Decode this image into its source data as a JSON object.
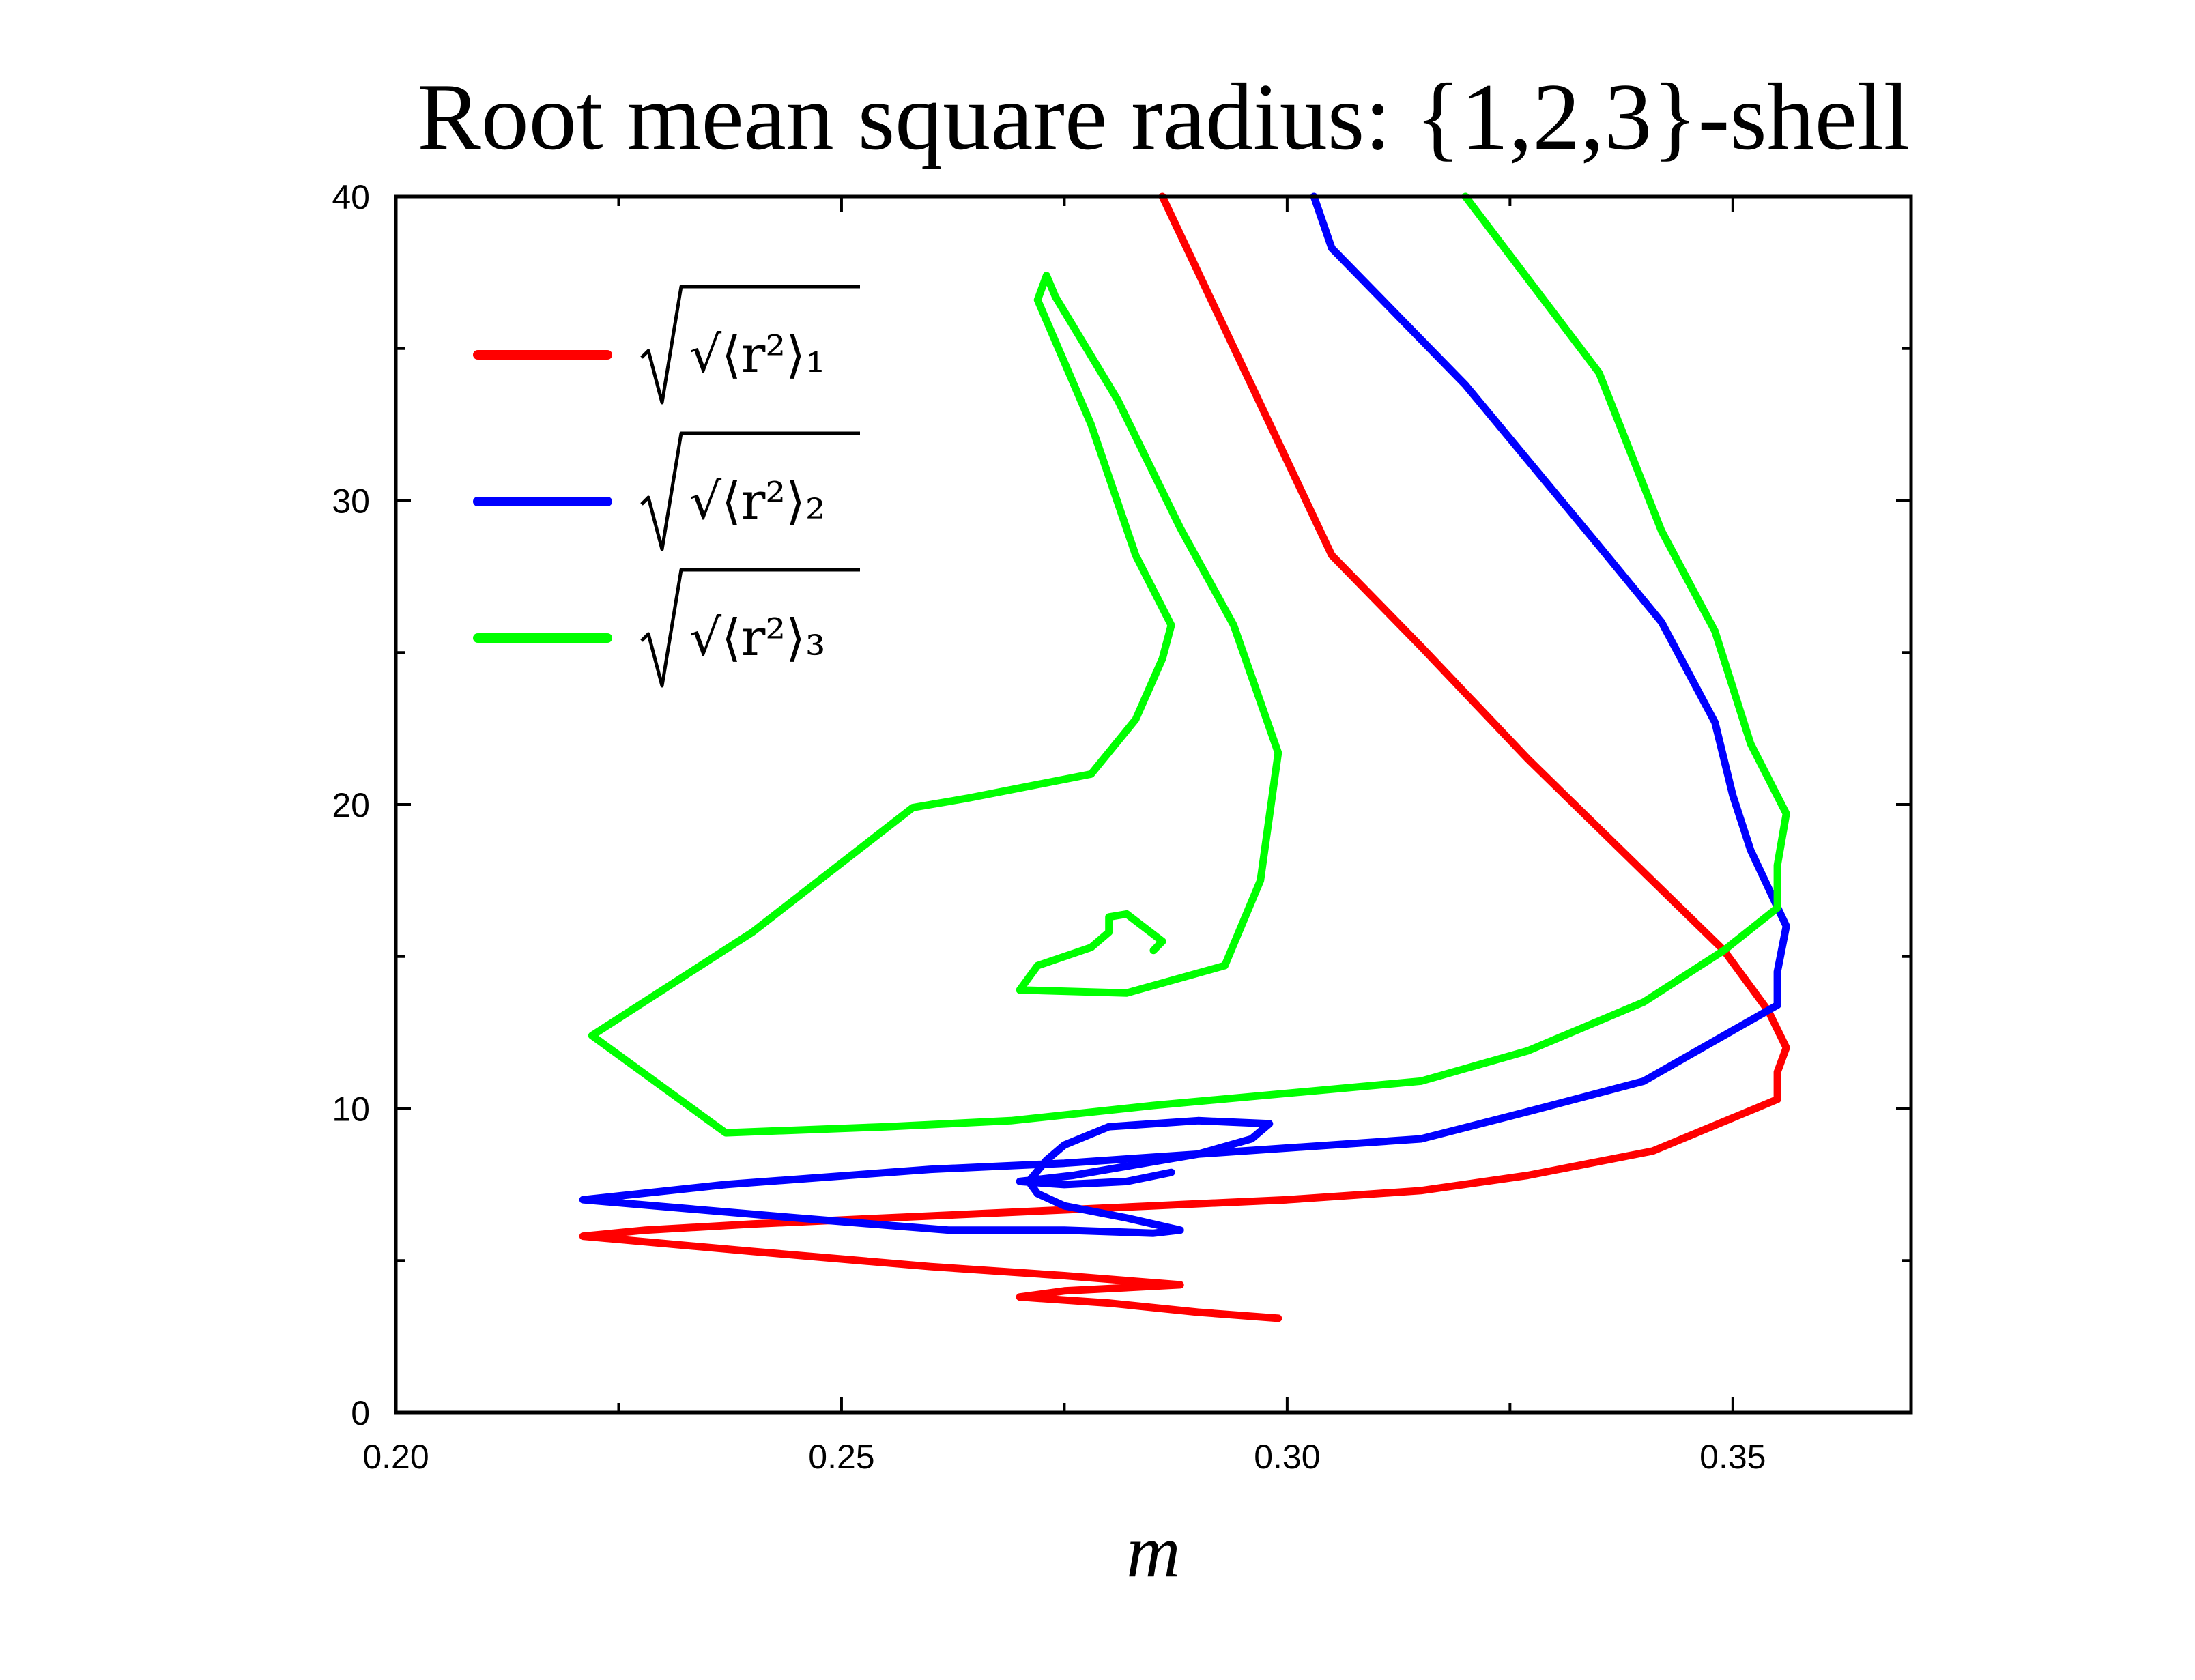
{
  "chart_data": {
    "type": "line",
    "title": "Root mean square radius: {1,2,3}-shell",
    "xlabel": "m",
    "ylabel": "",
    "xlim": [
      0.2,
      0.37
    ],
    "ylim": [
      0,
      40
    ],
    "x_ticks": [
      "0.20",
      "0.25",
      "0.30",
      "0.35"
    ],
    "y_ticks": [
      "0",
      "10",
      "20",
      "30",
      "40"
    ],
    "grid": false,
    "legend_position": "top-left",
    "series": [
      {
        "name": "√⟨r²⟩₁",
        "color": "#ff0000",
        "points": [
          [
            0.286,
            40.0
          ],
          [
            0.305,
            28.2
          ],
          [
            0.315,
            25.2
          ],
          [
            0.327,
            21.5
          ],
          [
            0.342,
            17.2
          ],
          [
            0.349,
            15.2
          ],
          [
            0.354,
            13.2
          ],
          [
            0.356,
            12.0
          ],
          [
            0.355,
            11.2
          ],
          [
            0.355,
            10.3
          ],
          [
            0.341,
            8.6
          ],
          [
            0.327,
            7.8
          ],
          [
            0.315,
            7.3
          ],
          [
            0.3,
            7.0
          ],
          [
            0.285,
            6.8
          ],
          [
            0.27,
            6.6
          ],
          [
            0.255,
            6.4
          ],
          [
            0.24,
            6.2
          ],
          [
            0.228,
            6.0
          ],
          [
            0.221,
            5.8
          ],
          [
            0.24,
            5.3
          ],
          [
            0.26,
            4.8
          ],
          [
            0.275,
            4.5
          ],
          [
            0.288,
            4.2
          ],
          [
            0.275,
            4.0
          ],
          [
            0.27,
            3.8
          ],
          [
            0.28,
            3.6
          ],
          [
            0.29,
            3.3
          ],
          [
            0.299,
            3.1
          ]
        ]
      },
      {
        "name": "√⟨r²⟩₂",
        "color": "#0000ff",
        "points": [
          [
            0.303,
            40.0
          ],
          [
            0.305,
            38.3
          ],
          [
            0.32,
            33.8
          ],
          [
            0.335,
            28.5
          ],
          [
            0.342,
            26.0
          ],
          [
            0.348,
            22.7
          ],
          [
            0.35,
            20.3
          ],
          [
            0.352,
            18.5
          ],
          [
            0.356,
            16.0
          ],
          [
            0.355,
            14.5
          ],
          [
            0.355,
            13.4
          ],
          [
            0.34,
            10.9
          ],
          [
            0.327,
            9.9
          ],
          [
            0.315,
            9.0
          ],
          [
            0.3,
            8.7
          ],
          [
            0.29,
            8.5
          ],
          [
            0.275,
            8.2
          ],
          [
            0.26,
            8.0
          ],
          [
            0.237,
            7.5
          ],
          [
            0.221,
            7.0
          ],
          [
            0.245,
            6.4
          ],
          [
            0.262,
            6.0
          ],
          [
            0.275,
            6.0
          ],
          [
            0.285,
            5.9
          ],
          [
            0.288,
            6.0
          ],
          [
            0.282,
            6.4
          ],
          [
            0.275,
            6.8
          ],
          [
            0.272,
            7.2
          ],
          [
            0.271,
            7.6
          ],
          [
            0.273,
            8.3
          ],
          [
            0.275,
            8.8
          ],
          [
            0.28,
            9.4
          ],
          [
            0.29,
            9.6
          ],
          [
            0.298,
            9.5
          ],
          [
            0.296,
            9.0
          ],
          [
            0.29,
            8.5
          ],
          [
            0.282,
            8.1
          ],
          [
            0.276,
            7.8
          ],
          [
            0.27,
            7.6
          ],
          [
            0.275,
            7.5
          ],
          [
            0.282,
            7.6
          ],
          [
            0.287,
            7.9
          ]
        ]
      },
      {
        "name": "√⟨r²⟩₃",
        "color": "#00ff00",
        "points": [
          [
            0.32,
            40.0
          ],
          [
            0.335,
            34.2
          ],
          [
            0.342,
            29.0
          ],
          [
            0.348,
            25.7
          ],
          [
            0.352,
            22.0
          ],
          [
            0.356,
            19.7
          ],
          [
            0.355,
            18.0
          ],
          [
            0.355,
            16.6
          ],
          [
            0.349,
            15.2
          ],
          [
            0.34,
            13.5
          ],
          [
            0.327,
            11.9
          ],
          [
            0.315,
            10.9
          ],
          [
            0.3,
            10.5
          ],
          [
            0.285,
            10.1
          ],
          [
            0.269,
            9.6
          ],
          [
            0.255,
            9.4
          ],
          [
            0.237,
            9.2
          ],
          [
            0.222,
            12.4
          ],
          [
            0.24,
            15.8
          ],
          [
            0.258,
            19.9
          ],
          [
            0.264,
            20.2
          ],
          [
            0.278,
            21.0
          ],
          [
            0.283,
            22.8
          ],
          [
            0.286,
            24.8
          ],
          [
            0.287,
            25.9
          ],
          [
            0.283,
            28.2
          ],
          [
            0.278,
            32.5
          ],
          [
            0.272,
            36.6
          ],
          [
            0.273,
            37.4
          ],
          [
            0.274,
            36.7
          ],
          [
            0.281,
            33.3
          ],
          [
            0.288,
            29.1
          ],
          [
            0.294,
            25.9
          ],
          [
            0.299,
            21.7
          ],
          [
            0.297,
            17.5
          ],
          [
            0.293,
            14.7
          ],
          [
            0.282,
            13.8
          ],
          [
            0.27,
            13.9
          ],
          [
            0.272,
            14.7
          ],
          [
            0.278,
            15.3
          ],
          [
            0.28,
            15.8
          ],
          [
            0.28,
            16.3
          ],
          [
            0.282,
            16.4
          ],
          [
            0.286,
            15.5
          ],
          [
            0.285,
            15.2
          ]
        ]
      }
    ]
  }
}
